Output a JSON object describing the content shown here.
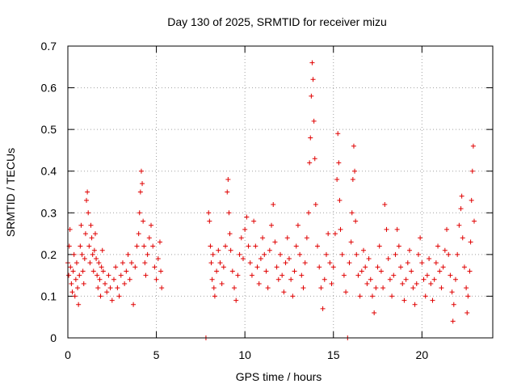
{
  "chart_data": {
    "type": "scatter",
    "title": "Day 130 of 2025, SRMTID for receiver mizu",
    "xlabel": "GPS time / hours",
    "ylabel": "SRMTID / TECUs",
    "xlim": [
      0,
      24
    ],
    "ylim": [
      0,
      0.7
    ],
    "xticks": [
      0,
      5,
      10,
      15,
      20
    ],
    "xtick_labels": [
      "0",
      "5",
      "10",
      "15",
      "20"
    ],
    "yticks": [
      0,
      0.1,
      0.2,
      0.3,
      0.4,
      0.5,
      0.6,
      0.7
    ],
    "ytick_labels": [
      "0",
      "0.1",
      "0.2",
      "0.3",
      "0.4",
      "0.5",
      "0.6",
      "0.7"
    ],
    "grid": true,
    "marker": "+",
    "color": "#e00000",
    "series": [
      {
        "name": "SRMTID",
        "points": [
          [
            0.0,
            0.18
          ],
          [
            0.05,
            0.15
          ],
          [
            0.08,
            0.22
          ],
          [
            0.12,
            0.26
          ],
          [
            0.15,
            0.17
          ],
          [
            0.2,
            0.13
          ],
          [
            0.25,
            0.11
          ],
          [
            0.3,
            0.16
          ],
          [
            0.35,
            0.2
          ],
          [
            0.4,
            0.1
          ],
          [
            0.45,
            0.14
          ],
          [
            0.5,
            0.18
          ],
          [
            0.55,
            0.12
          ],
          [
            0.6,
            0.08
          ],
          [
            0.65,
            0.15
          ],
          [
            0.7,
            0.22
          ],
          [
            0.75,
            0.27
          ],
          [
            0.8,
            0.2
          ],
          [
            0.85,
            0.16
          ],
          [
            0.9,
            0.13
          ],
          [
            0.95,
            0.19
          ],
          [
            1.0,
            0.25
          ],
          [
            1.05,
            0.33
          ],
          [
            1.1,
            0.35
          ],
          [
            1.15,
            0.3
          ],
          [
            1.2,
            0.22
          ],
          [
            1.25,
            0.18
          ],
          [
            1.3,
            0.27
          ],
          [
            1.35,
            0.24
          ],
          [
            1.4,
            0.2
          ],
          [
            1.45,
            0.16
          ],
          [
            1.5,
            0.21
          ],
          [
            1.55,
            0.25
          ],
          [
            1.6,
            0.19
          ],
          [
            1.65,
            0.15
          ],
          [
            1.7,
            0.12
          ],
          [
            1.75,
            0.18
          ],
          [
            1.8,
            0.14
          ],
          [
            1.85,
            0.1
          ],
          [
            1.9,
            0.17
          ],
          [
            1.95,
            0.21
          ],
          [
            2.0,
            0.16
          ],
          [
            2.1,
            0.13
          ],
          [
            2.2,
            0.11
          ],
          [
            2.3,
            0.15
          ],
          [
            2.4,
            0.12
          ],
          [
            2.5,
            0.09
          ],
          [
            2.6,
            0.14
          ],
          [
            2.7,
            0.17
          ],
          [
            2.8,
            0.12
          ],
          [
            2.9,
            0.1
          ],
          [
            3.0,
            0.15
          ],
          [
            3.1,
            0.18
          ],
          [
            3.2,
            0.13
          ],
          [
            3.3,
            0.16
          ],
          [
            3.4,
            0.2
          ],
          [
            3.5,
            0.14
          ],
          [
            3.6,
            0.18
          ],
          [
            3.7,
            0.08
          ],
          [
            3.8,
            0.17
          ],
          [
            3.9,
            0.22
          ],
          [
            4.0,
            0.25
          ],
          [
            4.05,
            0.3
          ],
          [
            4.1,
            0.35
          ],
          [
            4.15,
            0.4
          ],
          [
            4.2,
            0.37
          ],
          [
            4.25,
            0.28
          ],
          [
            4.3,
            0.22
          ],
          [
            4.35,
            0.18
          ],
          [
            4.4,
            0.15
          ],
          [
            4.5,
            0.2
          ],
          [
            4.6,
            0.24
          ],
          [
            4.7,
            0.27
          ],
          [
            4.8,
            0.22
          ],
          [
            4.9,
            0.17
          ],
          [
            5.0,
            0.14
          ],
          [
            5.1,
            0.19
          ],
          [
            5.2,
            0.23
          ],
          [
            5.25,
            0.16
          ],
          [
            5.3,
            0.12
          ],
          [
            7.8,
            0.0
          ],
          [
            7.95,
            0.3
          ],
          [
            8.0,
            0.28
          ],
          [
            8.05,
            0.22
          ],
          [
            8.1,
            0.18
          ],
          [
            8.15,
            0.14
          ],
          [
            8.2,
            0.2
          ],
          [
            8.25,
            0.12
          ],
          [
            8.3,
            0.1
          ],
          [
            8.4,
            0.16
          ],
          [
            8.5,
            0.21
          ],
          [
            8.6,
            0.18
          ],
          [
            8.7,
            0.13
          ],
          [
            8.8,
            0.17
          ],
          [
            8.9,
            0.22
          ],
          [
            9.0,
            0.35
          ],
          [
            9.05,
            0.38
          ],
          [
            9.1,
            0.3
          ],
          [
            9.15,
            0.25
          ],
          [
            9.2,
            0.21
          ],
          [
            9.3,
            0.16
          ],
          [
            9.4,
            0.12
          ],
          [
            9.5,
            0.09
          ],
          [
            9.6,
            0.15
          ],
          [
            9.7,
            0.2
          ],
          [
            9.8,
            0.24
          ],
          [
            9.9,
            0.19
          ],
          [
            10.0,
            0.26
          ],
          [
            10.1,
            0.29
          ],
          [
            10.2,
            0.22
          ],
          [
            10.3,
            0.18
          ],
          [
            10.4,
            0.15
          ],
          [
            10.5,
            0.28
          ],
          [
            10.6,
            0.22
          ],
          [
            10.7,
            0.17
          ],
          [
            10.8,
            0.13
          ],
          [
            10.9,
            0.19
          ],
          [
            11.0,
            0.24
          ],
          [
            11.1,
            0.2
          ],
          [
            11.2,
            0.16
          ],
          [
            11.3,
            0.12
          ],
          [
            11.4,
            0.21
          ],
          [
            11.5,
            0.27
          ],
          [
            11.6,
            0.32
          ],
          [
            11.7,
            0.23
          ],
          [
            11.8,
            0.17
          ],
          [
            11.9,
            0.14
          ],
          [
            12.0,
            0.2
          ],
          [
            12.1,
            0.15
          ],
          [
            12.2,
            0.11
          ],
          [
            12.3,
            0.18
          ],
          [
            12.4,
            0.24
          ],
          [
            12.5,
            0.19
          ],
          [
            12.6,
            0.14
          ],
          [
            12.7,
            0.1
          ],
          [
            12.8,
            0.16
          ],
          [
            12.9,
            0.22
          ],
          [
            13.0,
            0.27
          ],
          [
            13.1,
            0.2
          ],
          [
            13.2,
            0.15
          ],
          [
            13.3,
            0.12
          ],
          [
            13.4,
            0.18
          ],
          [
            13.5,
            0.24
          ],
          [
            13.6,
            0.3
          ],
          [
            13.65,
            0.42
          ],
          [
            13.7,
            0.48
          ],
          [
            13.75,
            0.58
          ],
          [
            13.8,
            0.66
          ],
          [
            13.85,
            0.62
          ],
          [
            13.9,
            0.52
          ],
          [
            13.95,
            0.43
          ],
          [
            14.0,
            0.32
          ],
          [
            14.1,
            0.22
          ],
          [
            14.2,
            0.17
          ],
          [
            14.3,
            0.12
          ],
          [
            14.4,
            0.07
          ],
          [
            14.5,
            0.14
          ],
          [
            14.6,
            0.2
          ],
          [
            14.7,
            0.25
          ],
          [
            14.8,
            0.18
          ],
          [
            14.9,
            0.13
          ],
          [
            15.0,
            0.17
          ],
          [
            15.1,
            0.25
          ],
          [
            15.2,
            0.38
          ],
          [
            15.25,
            0.49
          ],
          [
            15.3,
            0.42
          ],
          [
            15.35,
            0.33
          ],
          [
            15.4,
            0.26
          ],
          [
            15.5,
            0.2
          ],
          [
            15.6,
            0.15
          ],
          [
            15.7,
            0.11
          ],
          [
            15.8,
            0.0
          ],
          [
            15.9,
            0.18
          ],
          [
            16.0,
            0.23
          ],
          [
            16.05,
            0.3
          ],
          [
            16.1,
            0.38
          ],
          [
            16.15,
            0.46
          ],
          [
            16.2,
            0.4
          ],
          [
            16.25,
            0.28
          ],
          [
            16.3,
            0.2
          ],
          [
            16.4,
            0.15
          ],
          [
            16.5,
            0.1
          ],
          [
            16.6,
            0.16
          ],
          [
            16.7,
            0.21
          ],
          [
            16.8,
            0.17
          ],
          [
            16.9,
            0.13
          ],
          [
            17.0,
            0.19
          ],
          [
            17.1,
            0.14
          ],
          [
            17.2,
            0.1
          ],
          [
            17.3,
            0.06
          ],
          [
            17.4,
            0.12
          ],
          [
            17.5,
            0.17
          ],
          [
            17.6,
            0.22
          ],
          [
            17.7,
            0.16
          ],
          [
            17.8,
            0.12
          ],
          [
            17.9,
            0.32
          ],
          [
            18.0,
            0.26
          ],
          [
            18.1,
            0.19
          ],
          [
            18.2,
            0.14
          ],
          [
            18.3,
            0.1
          ],
          [
            18.4,
            0.15
          ],
          [
            18.5,
            0.2
          ],
          [
            18.6,
            0.26
          ],
          [
            18.7,
            0.22
          ],
          [
            18.8,
            0.17
          ],
          [
            18.9,
            0.13
          ],
          [
            19.0,
            0.09
          ],
          [
            19.1,
            0.14
          ],
          [
            19.2,
            0.18
          ],
          [
            19.3,
            0.21
          ],
          [
            19.4,
            0.16
          ],
          [
            19.5,
            0.12
          ],
          [
            19.6,
            0.08
          ],
          [
            19.7,
            0.13
          ],
          [
            19.8,
            0.2
          ],
          [
            19.9,
            0.24
          ],
          [
            20.0,
            0.18
          ],
          [
            20.1,
            0.14
          ],
          [
            20.2,
            0.1
          ],
          [
            20.3,
            0.15
          ],
          [
            20.4,
            0.19
          ],
          [
            20.5,
            0.13
          ],
          [
            20.6,
            0.09
          ],
          [
            20.7,
            0.14
          ],
          [
            20.8,
            0.18
          ],
          [
            20.9,
            0.22
          ],
          [
            21.0,
            0.16
          ],
          [
            21.1,
            0.12
          ],
          [
            21.2,
            0.17
          ],
          [
            21.3,
            0.21
          ],
          [
            21.4,
            0.26
          ],
          [
            21.5,
            0.2
          ],
          [
            21.6,
            0.15
          ],
          [
            21.7,
            0.11
          ],
          [
            21.75,
            0.04
          ],
          [
            21.8,
            0.08
          ],
          [
            21.9,
            0.14
          ],
          [
            22.0,
            0.2
          ],
          [
            22.1,
            0.27
          ],
          [
            22.2,
            0.31
          ],
          [
            22.25,
            0.34
          ],
          [
            22.3,
            0.24
          ],
          [
            22.4,
            0.17
          ],
          [
            22.5,
            0.12
          ],
          [
            22.55,
            0.06
          ],
          [
            22.6,
            0.1
          ],
          [
            22.7,
            0.16
          ],
          [
            22.75,
            0.23
          ],
          [
            22.8,
            0.33
          ],
          [
            22.85,
            0.4
          ],
          [
            22.9,
            0.46
          ],
          [
            22.95,
            0.28
          ]
        ]
      }
    ]
  }
}
